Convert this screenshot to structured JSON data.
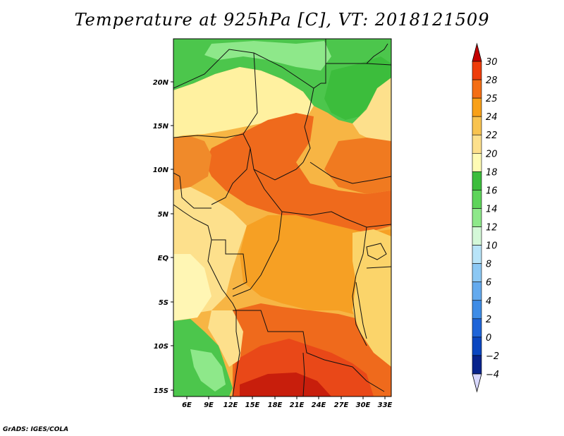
{
  "title": "Temperature at 925hPa [C], VT: 2018121509",
  "credit": "GrADS: IGES/COLA",
  "map": {
    "lat_labels": [
      "20N",
      "15N",
      "10N",
      "5N",
      "EQ",
      "5S",
      "10S",
      "15S"
    ],
    "lon_labels": [
      "6E",
      "9E",
      "12E",
      "15E",
      "18E",
      "21E",
      "24E",
      "27E",
      "30E",
      "33E"
    ]
  },
  "colorbar": {
    "levels": [
      "30",
      "28",
      "25",
      "24",
      "22",
      "20",
      "18",
      "16",
      "14",
      "12",
      "10",
      "8",
      "6",
      "4",
      "2",
      "0",
      "-2",
      "-4"
    ],
    "colors": [
      "#c40000",
      "#ee3c0a",
      "#f46e14",
      "#f8a018",
      "#f8c350",
      "#fde08c",
      "#fffbb4",
      "#3cbd3c",
      "#5ed45a",
      "#8ee88a",
      "#d4f8d8",
      "#b8e4f8",
      "#8cc8f4",
      "#64aaee",
      "#3e8ce6",
      "#1e64d8",
      "#0a46c0",
      "#08238c",
      "#061264"
    ],
    "top_arrow_color": "#c40000",
    "bottom_arrow_color": "#d8d8ff"
  },
  "regions": {
    "sahara_green": "#4cc64c",
    "cool_yellow": "#fff6a8",
    "warm_yellow": "#fbd46a",
    "orange": "#f6a024",
    "deep_orange": "#ef6a1c",
    "red_orange": "#e94818",
    "red": "#c81e0c"
  }
}
